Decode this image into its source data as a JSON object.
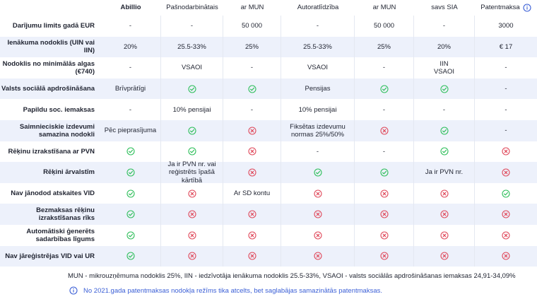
{
  "colors": {
    "check": "#2fbf5b",
    "cross": "#e04a5c",
    "info": "#3b5fd6",
    "alt_row": "#edf1fb"
  },
  "columns": [
    "",
    "Abillio",
    "Pašnodarbinātais",
    "ar MUN",
    "Autoratlīdzība",
    "ar MUN",
    "savs SIA",
    "Patentmaksa"
  ],
  "header_info_icon": "info-circle-icon",
  "rows": [
    {
      "label": "Darījumu limits gadā EUR",
      "cells": [
        "-",
        "-",
        "50 000",
        "-",
        "50 000",
        "-",
        "3000"
      ]
    },
    {
      "label": "Ienākuma nodoklis (UIN vai IIN)",
      "cells": [
        "20%",
        "25.5-33%",
        "25%",
        "25.5-33%",
        "25%",
        "20%",
        "€ 17"
      ]
    },
    {
      "label": "Nodoklis no minimālās algas (€740)",
      "cells": [
        "-",
        "VSAOI",
        "-",
        "VSAOI",
        "-",
        "IIN\nVSAOI",
        "-"
      ]
    },
    {
      "label": "Valsts sociālā apdrošināšana",
      "cells": [
        "Brīvprātīgi",
        "check",
        "check",
        "Pensijas",
        "check",
        "check",
        "-"
      ]
    },
    {
      "label": "Papildu soc. iemaksas",
      "cells": [
        "-",
        "10% pensijai",
        "-",
        "10% pensijai",
        "-",
        "-",
        "-"
      ]
    },
    {
      "label": "Saimnieciskie izdevumi samazina nodokli",
      "cells": [
        "Pēc pieprasījuma",
        "check",
        "cross",
        "Fiksētas izdevumu normas 25%/50%",
        "cross",
        "check",
        "-"
      ]
    },
    {
      "label": "Rēķinu izrakstīšana ar PVN",
      "cells": [
        "check",
        "check",
        "cross",
        "-",
        "-",
        "check",
        "cross"
      ]
    },
    {
      "label": "Rēķini ārvalstīm",
      "cells": [
        "check",
        "Ja ir PVN nr. vai reģistrēts īpašā kārtībā",
        "cross",
        "check",
        "check",
        "Ja ir PVN nr.",
        "cross"
      ]
    },
    {
      "label": "Nav jānodod atskaites VID",
      "cells": [
        "check",
        "cross",
        "Ar SD kontu",
        "cross",
        "cross",
        "cross",
        "check"
      ]
    },
    {
      "label": "Bezmaksas rēķinu izrakstīšanas rīks",
      "cells": [
        "check",
        "cross",
        "cross",
        "cross",
        "cross",
        "cross",
        "cross"
      ]
    },
    {
      "label": "Automātiski ģenerēts sadarbības līgums",
      "cells": [
        "check",
        "cross",
        "cross",
        "cross",
        "cross",
        "cross",
        "cross"
      ]
    },
    {
      "label": "Nav jāreģistrējas VID vai UR",
      "cells": [
        "check",
        "cross",
        "cross",
        "cross",
        "cross",
        "cross",
        "cross"
      ]
    }
  ],
  "footnote": "MUN - mikrouzņēmuma nodoklis 25%, IIN - iedzīvotāja ienākuma nodoklis 25.5-33%, VSAOI - valsts sociālās apdrošināšanas iemaksas 24,91-34,09%",
  "info_note": "No 2021.gada patentmaksas nodokļa režīms tika atcelts, bet saglabājas samazinātās patentmaksas."
}
